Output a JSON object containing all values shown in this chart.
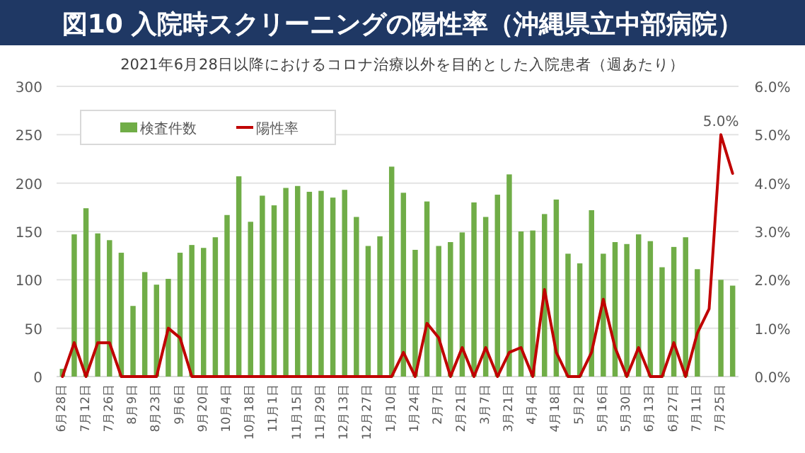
{
  "chart_data": {
    "type": "bar",
    "title": "図10 入院時スクリーニングの陽性率（沖縄県立中部病院）",
    "subtitle": "2021年6月28日以降におけるコロナ治療以外を目的とした入院患者（週あたり）",
    "categories": [
      "6月28日",
      null,
      "7月12日",
      null,
      "7月26日",
      null,
      "8月9日",
      null,
      "8月23日",
      null,
      "9月6日",
      null,
      "9月20日",
      null,
      "10月4日",
      null,
      "10月18日",
      null,
      "11月1日",
      null,
      "11月15日",
      null,
      "11月29日",
      null,
      "12月13日",
      null,
      "12月27日",
      null,
      "1月10日",
      null,
      "1月24日",
      null,
      "2月7日",
      null,
      "2月21日",
      null,
      "3月7日",
      null,
      "3月21日",
      null,
      "4月4日",
      null,
      "4月18日",
      null,
      "5月2日",
      null,
      "5月16日",
      null,
      "5月30日",
      null,
      "6月13日",
      null,
      "6月27日",
      null,
      "7月11日",
      null,
      "7月25日",
      null
    ],
    "series": [
      {
        "name": "検査件数",
        "color": "#70ad47",
        "values": [
          8,
          147,
          174,
          148,
          141,
          128,
          73,
          108,
          95,
          101,
          128,
          136,
          133,
          144,
          167,
          207,
          160,
          187,
          177,
          195,
          197,
          191,
          192,
          185,
          193,
          165,
          135,
          145,
          217,
          190,
          131,
          181,
          135,
          139,
          149,
          180,
          165,
          188,
          209,
          150,
          151,
          168,
          183,
          127,
          117,
          172,
          127,
          139,
          137,
          147,
          140,
          113,
          134,
          144,
          111,
          null,
          100,
          94
        ]
      },
      {
        "name": "陽性率",
        "type": "line",
        "axis": "y2",
        "color": "#c00000",
        "values": [
          0,
          0.7,
          0,
          0.7,
          0.7,
          0,
          0,
          0,
          0,
          1.0,
          0.8,
          0,
          0,
          0,
          0,
          0,
          0,
          0,
          0,
          0,
          0,
          0,
          0,
          0,
          0,
          0,
          0,
          0,
          0,
          0.5,
          0,
          1.1,
          0.8,
          0,
          0.6,
          0,
          0.6,
          0,
          0.5,
          0.6,
          0,
          1.8,
          0.5,
          0,
          0,
          0.5,
          1.6,
          0.6,
          0,
          0.6,
          0,
          0,
          0.7,
          0,
          0.9,
          1.4,
          5.0,
          4.2
        ]
      }
    ],
    "ylim": [
      0,
      300
    ],
    "yticks": [
      0,
      50,
      100,
      150,
      200,
      250,
      300
    ],
    "y2lim": [
      0,
      6
    ],
    "y2ticks": [
      {
        "value": 0,
        "label": "0.0%"
      },
      {
        "value": 1,
        "label": "1.0%"
      },
      {
        "value": 2,
        "label": "2.0%"
      },
      {
        "value": 3,
        "label": "3.0%"
      },
      {
        "value": 4,
        "label": "4.0%"
      },
      {
        "value": 5,
        "label": "5.0%"
      },
      {
        "value": 6,
        "label": "6.0%"
      }
    ],
    "annotations": [
      "5.0%"
    ],
    "grid": "y",
    "legend": "top left",
    "marker": "none",
    "line_style": "solid"
  }
}
